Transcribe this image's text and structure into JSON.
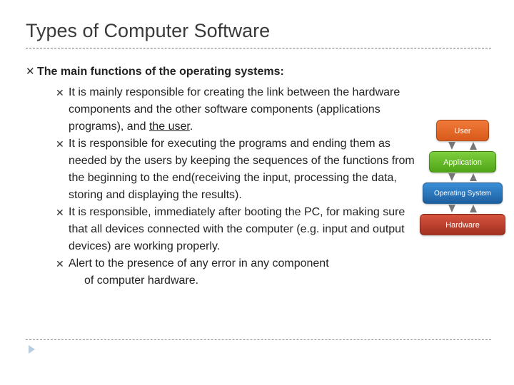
{
  "title": "Types of Computer Software",
  "heading": "The main functions of the operating systems:",
  "bullets": {
    "b1a": "It is mainly responsible for creating the link between the hardware components and the other software components (applications programs), and ",
    "b1u": "the user",
    "b1c": ".",
    "b2": "It is responsible for executing the programs and ending them as needed by the users by keeping the sequences of the functions from the beginning to the end(receiving the input, processing the data, storing and displaying the results).",
    "b3": "It is responsible, immediately after booting the PC, for making sure that all devices connected with the computer (e.g. input and output devices) are working properly.",
    "b4": "Alert to the presence of any error in any component",
    "b4_last": "of computer hardware."
  },
  "stack": {
    "user": "User",
    "app": "Application",
    "os": "Operating System",
    "hw": "Hardware",
    "colors": {
      "user": "#e8652a",
      "app": "#6bbf2e",
      "os": "#2d7bc4",
      "hw": "#c2402d"
    }
  }
}
